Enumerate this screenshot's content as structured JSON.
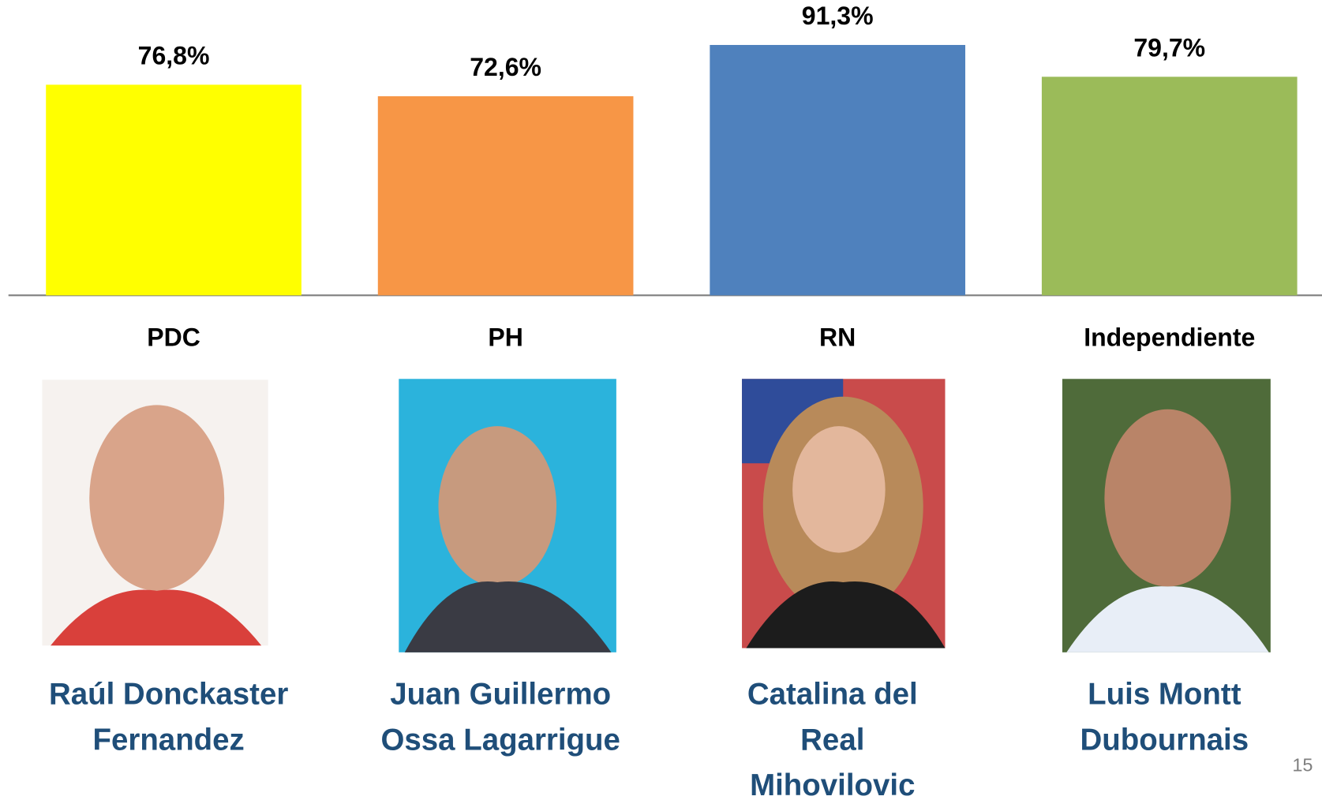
{
  "chart_data": {
    "type": "bar",
    "categories": [
      "PDC",
      "PH",
      "RN",
      "Independiente"
    ],
    "values": [
      76.8,
      72.6,
      91.3,
      79.7
    ],
    "value_labels": [
      "76,8%",
      "72,6%",
      "91,3%",
      "79,7%"
    ],
    "colors": [
      "#ffff00",
      "#f79646",
      "#4f81bd",
      "#9bbb59"
    ],
    "ylim": [
      0,
      100
    ],
    "candidates": [
      [
        "Raúl  Donckaster",
        "Fernandez"
      ],
      [
        "Juan Guillermo",
        "Ossa Lagarrigue"
      ],
      [
        "Catalina del",
        "Real",
        "Mihovilovic"
      ],
      [
        "Luis Montt",
        "Dubournais"
      ]
    ],
    "page_number": "15"
  }
}
